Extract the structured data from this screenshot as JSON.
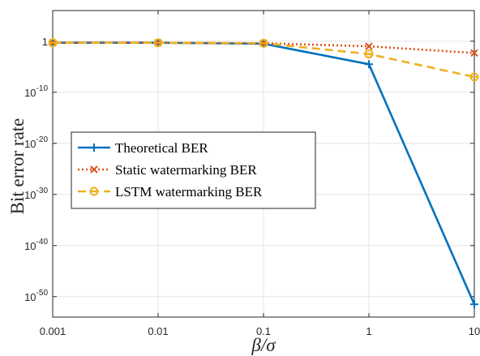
{
  "chart_data": {
    "type": "line",
    "xlabel": "β/σ",
    "ylabel": "Bit error rate",
    "x_scale": "log",
    "y_scale": "log",
    "xlim": [
      0.001,
      10
    ],
    "ylim_exponent": [
      -54,
      6
    ],
    "grid": true,
    "legend_placement": "center-left",
    "x": [
      0.001,
      0.01,
      0.1,
      1,
      10
    ],
    "x_tick_labels": [
      "0.001",
      "0.01",
      "0.1",
      "1",
      "10"
    ],
    "y_ticks": [
      {
        "base": "10",
        "exp": "-50",
        "value_exp": -50
      },
      {
        "base": "10",
        "exp": "-40",
        "value_exp": -40
      },
      {
        "base": "10",
        "exp": "-30",
        "value_exp": -30
      },
      {
        "base": "10",
        "exp": "-20",
        "value_exp": -20
      },
      {
        "base": "10",
        "exp": "-10",
        "value_exp": -10
      },
      {
        "base": "1",
        "exp": "",
        "value_exp": 0
      }
    ],
    "series": [
      {
        "name": "Theoretical BER",
        "color": "#0072BD",
        "line_style": "solid",
        "marker": "plus",
        "log10_values": [
          -0.3,
          -0.3,
          -0.5,
          -4.5,
          -51.5
        ]
      },
      {
        "name": "Static watermarking BER",
        "color": "#D95319",
        "line_style": "dotted",
        "marker": "cross",
        "log10_values": [
          -0.3,
          -0.3,
          -0.4,
          -1.0,
          -2.3
        ]
      },
      {
        "name": "LSTM watermarking BER",
        "color": "#EDB120",
        "line_style": "dashed",
        "marker": "circle",
        "log10_values": [
          -0.3,
          -0.3,
          -0.4,
          -2.5,
          -7.0
        ]
      }
    ]
  }
}
